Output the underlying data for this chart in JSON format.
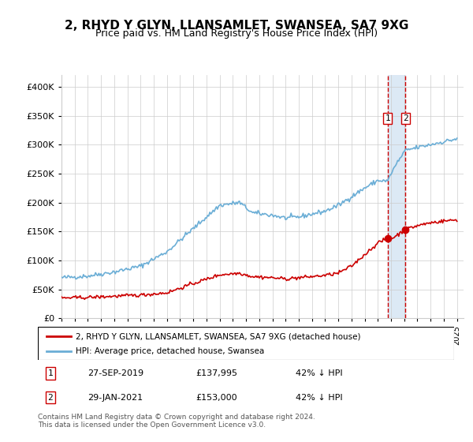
{
  "title": "2, RHYD Y GLYN, LLANSAMLET, SWANSEA, SA7 9XG",
  "subtitle": "Price paid vs. HM Land Registry's House Price Index (HPI)",
  "legend_line1": "2, RHYD Y GLYN, LLANSAMLET, SWANSEA, SA7 9XG (detached house)",
  "legend_line2": "HPI: Average price, detached house, Swansea",
  "transaction1_label": "1",
  "transaction1_date": "27-SEP-2019",
  "transaction1_price": "£137,995",
  "transaction1_hpi": "42% ↓ HPI",
  "transaction2_label": "2",
  "transaction2_date": "29-JAN-2021",
  "transaction2_price": "£153,000",
  "transaction2_hpi": "42% ↓ HPI",
  "footer": "Contains HM Land Registry data © Crown copyright and database right 2024.\nThis data is licensed under the Open Government Licence v3.0.",
  "hpi_color": "#6baed6",
  "price_color": "#cc0000",
  "marker_color": "#cc0000",
  "vline_color": "#cc0000",
  "highlight_color": "#dce9f5",
  "ylim": [
    0,
    420000
  ],
  "yticks": [
    0,
    50000,
    100000,
    150000,
    200000,
    250000,
    300000,
    350000,
    400000
  ],
  "ytick_labels": [
    "£0",
    "£50K",
    "£100K",
    "£150K",
    "£200K",
    "£250K",
    "£300K",
    "£350K",
    "£400K"
  ]
}
